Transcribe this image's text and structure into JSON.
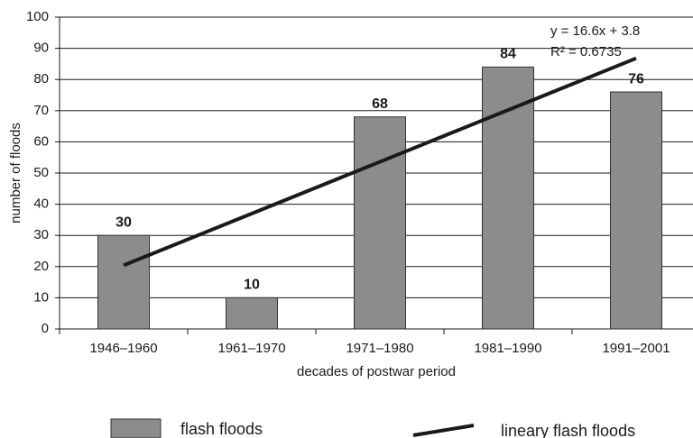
{
  "chart_data": {
    "type": "bar",
    "categories": [
      "1946–1960",
      "1961–1970",
      "1971–1980",
      "1981–1990",
      "1991–2001"
    ],
    "series": [
      {
        "name": "flash floods",
        "type": "bar",
        "color": "#8c8c8c",
        "values": [
          30,
          10,
          68,
          84,
          76
        ]
      },
      {
        "name": "lineary flash floods",
        "type": "line",
        "color": "#1a1a1a",
        "values": [
          20.4,
          37,
          53.6,
          70.2,
          86.8
        ]
      }
    ],
    "x_label": "decades of postwar period",
    "y_label": "number of floods",
    "annotations": [
      "y = 16.6x + 3.8",
      "R² = 0.6735"
    ],
    "ylim": [
      0,
      100
    ],
    "yticks": [
      0,
      10,
      20,
      30,
      40,
      50,
      60,
      70,
      80,
      90,
      100
    ],
    "grid": true,
    "legend": "bottom"
  }
}
